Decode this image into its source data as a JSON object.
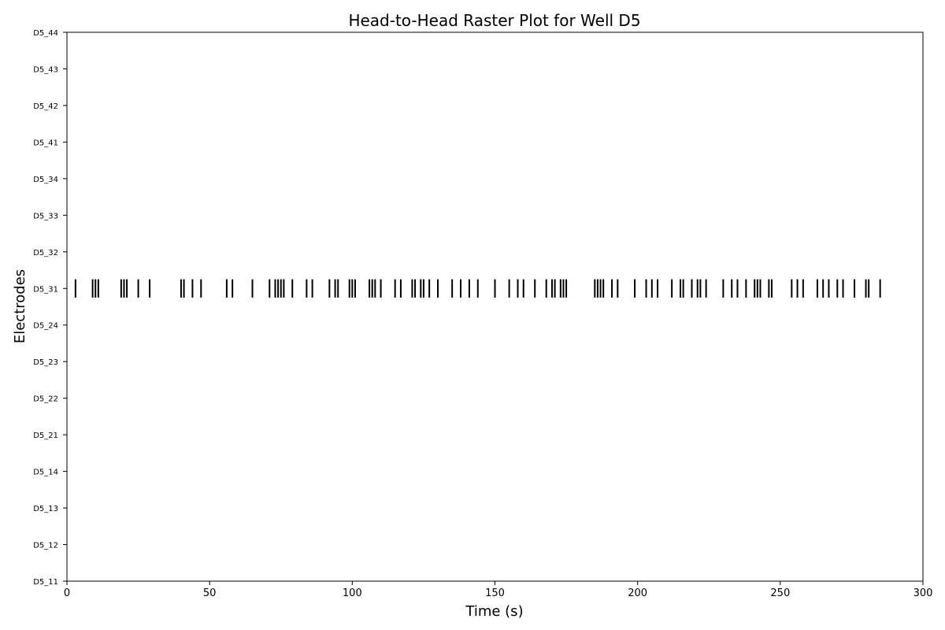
{
  "chart_data": {
    "type": "raster",
    "title": "Head-to-Head Raster Plot for Well D5",
    "xlabel": "Time (s)",
    "ylabel": "Electrodes",
    "xlim": [
      0,
      300
    ],
    "xticks": [
      0,
      50,
      100,
      150,
      200,
      250,
      300
    ],
    "electrodes": [
      "D5_11",
      "D5_12",
      "D5_13",
      "D5_14",
      "D5_21",
      "D5_22",
      "D5_23",
      "D5_24",
      "D5_31",
      "D5_32",
      "D5_33",
      "D5_34",
      "D5_41",
      "D5_42",
      "D5_43",
      "D5_44"
    ],
    "series": [
      {
        "electrode": "D5_31",
        "spike_times": [
          3,
          9,
          10,
          11,
          19,
          20,
          21,
          25,
          29,
          40,
          41,
          44,
          47,
          56,
          58,
          65,
          71,
          73,
          74,
          75,
          76,
          79,
          84,
          86,
          92,
          94,
          95,
          99,
          100,
          101,
          106,
          107,
          108,
          110,
          115,
          117,
          121,
          122,
          124,
          125,
          127,
          130,
          135,
          138,
          141,
          144,
          150,
          155,
          158,
          160,
          164,
          168,
          170,
          171,
          173,
          174,
          175,
          185,
          186,
          187,
          188,
          191,
          193,
          199,
          203,
          205,
          207,
          212,
          215,
          216,
          219,
          221,
          222,
          224,
          230,
          233,
          235,
          238,
          241,
          242,
          243,
          246,
          247,
          254,
          256,
          258,
          263,
          265,
          267,
          270,
          272,
          276,
          280,
          281,
          285
        ]
      }
    ],
    "grid": false,
    "color": "#000000"
  }
}
